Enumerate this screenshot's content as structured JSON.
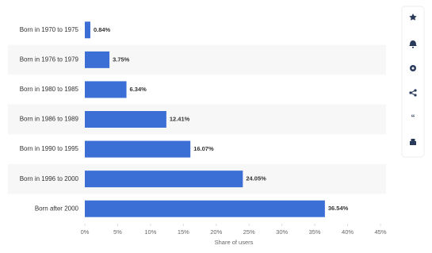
{
  "chart_data": {
    "type": "hbar",
    "categories": [
      "Born in 1970 to 1975",
      "Born in 1976 to 1979",
      "Born in 1980 to 1985",
      "Born in 1986 to 1989",
      "Born in 1990 to 1995",
      "Born in 1996 to 2000",
      "Born after 2000"
    ],
    "values": [
      0.84,
      3.75,
      6.34,
      12.41,
      16.07,
      24.05,
      36.54
    ],
    "value_labels": [
      "0.84%",
      "3.75%",
      "6.34%",
      "12.41%",
      "16.07%",
      "24.05%",
      "36.54%"
    ],
    "color": "#3b6fd6",
    "x_label": "Share of users",
    "xlim": [
      0,
      45
    ],
    "xticks": [
      {
        "value": 0,
        "label": "0%"
      },
      {
        "value": 5,
        "label": "5%"
      },
      {
        "value": 10,
        "label": "10%"
      },
      {
        "value": 15,
        "label": "15%"
      },
      {
        "value": 20,
        "label": "20%"
      },
      {
        "value": 25,
        "label": "25%"
      },
      {
        "value": 30,
        "label": "30%"
      },
      {
        "value": 35,
        "label": "35%"
      },
      {
        "value": 40,
        "label": "40%"
      },
      {
        "value": 45,
        "label": "45%"
      }
    ]
  }
}
